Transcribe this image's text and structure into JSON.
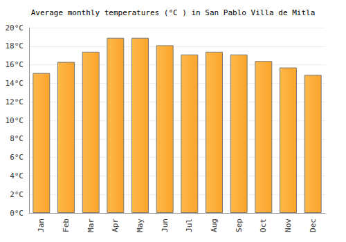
{
  "chart_data": {
    "type": "bar",
    "title": "Average monthly temperatures (°C ) in San Pablo Villa de Mitla",
    "categories": [
      "Jan",
      "Feb",
      "Mar",
      "Apr",
      "May",
      "Jun",
      "Jul",
      "Aug",
      "Sep",
      "Oct",
      "Nov",
      "Dec"
    ],
    "values": [
      15.1,
      16.3,
      17.4,
      18.9,
      18.9,
      18.1,
      17.1,
      17.4,
      17.1,
      16.4,
      15.7,
      14.9
    ],
    "color": "#fba42a",
    "ylim": [
      0,
      20
    ],
    "yticks": [
      {
        "value": 0,
        "label": "0°C"
      },
      {
        "value": 2,
        "label": "2°C"
      },
      {
        "value": 4,
        "label": "4°C"
      },
      {
        "value": 6,
        "label": "6°C"
      },
      {
        "value": 8,
        "label": "8°C"
      },
      {
        "value": 10,
        "label": "10°C"
      },
      {
        "value": 12,
        "label": "12°C"
      },
      {
        "value": 14,
        "label": "14°C"
      },
      {
        "value": 16,
        "label": "16°C"
      },
      {
        "value": 18,
        "label": "18°C"
      },
      {
        "value": 20,
        "label": "20°C"
      }
    ],
    "grid": true
  }
}
